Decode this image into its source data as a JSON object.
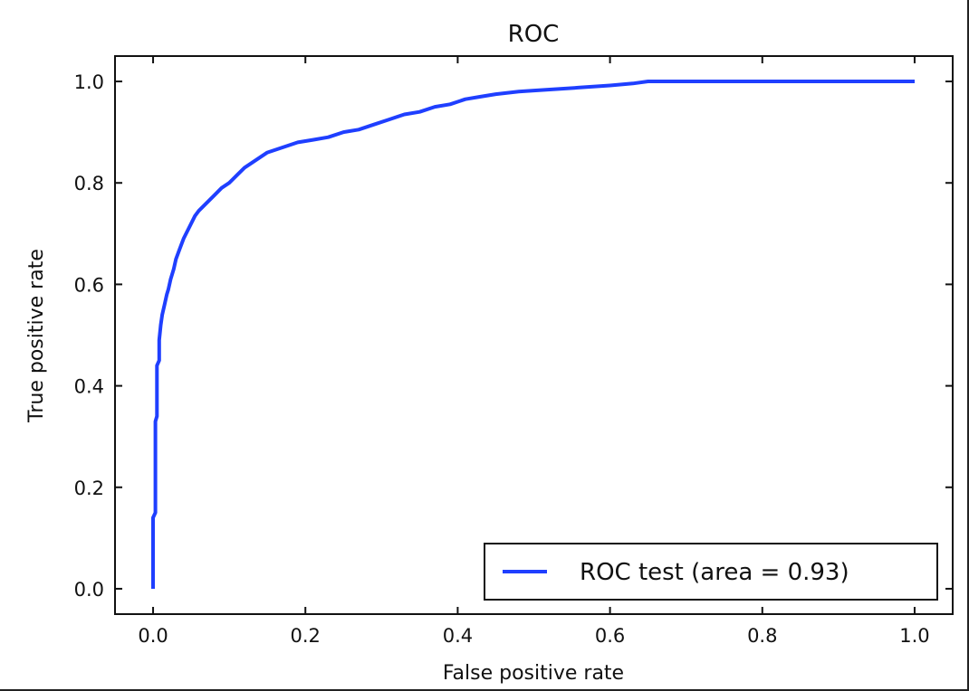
{
  "chart_data": {
    "type": "line",
    "title": "ROC",
    "xlabel": "False positive rate",
    "ylabel": "True positive rate",
    "xlim": [
      -0.05,
      1.05
    ],
    "ylim": [
      -0.05,
      1.05
    ],
    "x_ticks": [
      0.0,
      0.2,
      0.4,
      0.6,
      0.8,
      1.0
    ],
    "x_tick_labels": [
      "0.0",
      "0.2",
      "0.4",
      "0.6",
      "0.8",
      "1.0"
    ],
    "y_ticks": [
      0.0,
      0.2,
      0.4,
      0.6,
      0.8,
      1.0
    ],
    "y_tick_labels": [
      "0.0",
      "0.2",
      "0.4",
      "0.6",
      "0.8",
      "1.0"
    ],
    "grid": false,
    "legend_position": "lower-right",
    "series": [
      {
        "name": "ROC test (area = 0.93)",
        "color": "#1f3fff",
        "x": [
          0.0,
          0.0,
          0.003,
          0.003,
          0.005,
          0.005,
          0.008,
          0.008,
          0.01,
          0.012,
          0.015,
          0.018,
          0.02,
          0.023,
          0.027,
          0.03,
          0.035,
          0.04,
          0.045,
          0.05,
          0.055,
          0.06,
          0.07,
          0.08,
          0.09,
          0.1,
          0.11,
          0.12,
          0.13,
          0.14,
          0.15,
          0.17,
          0.19,
          0.21,
          0.23,
          0.25,
          0.27,
          0.29,
          0.31,
          0.33,
          0.35,
          0.37,
          0.39,
          0.41,
          0.43,
          0.45,
          0.48,
          0.5,
          0.53,
          0.56,
          0.6,
          0.63,
          0.65,
          0.7,
          0.8,
          0.9,
          1.0
        ],
        "y": [
          0.0,
          0.14,
          0.15,
          0.33,
          0.34,
          0.44,
          0.45,
          0.49,
          0.52,
          0.54,
          0.56,
          0.58,
          0.59,
          0.61,
          0.63,
          0.65,
          0.67,
          0.69,
          0.705,
          0.72,
          0.735,
          0.745,
          0.76,
          0.775,
          0.79,
          0.8,
          0.815,
          0.83,
          0.84,
          0.85,
          0.86,
          0.87,
          0.88,
          0.885,
          0.89,
          0.9,
          0.905,
          0.915,
          0.925,
          0.935,
          0.94,
          0.95,
          0.955,
          0.965,
          0.97,
          0.975,
          0.98,
          0.982,
          0.985,
          0.988,
          0.992,
          0.996,
          1.0,
          1.0,
          1.0,
          1.0,
          1.0
        ]
      }
    ]
  }
}
